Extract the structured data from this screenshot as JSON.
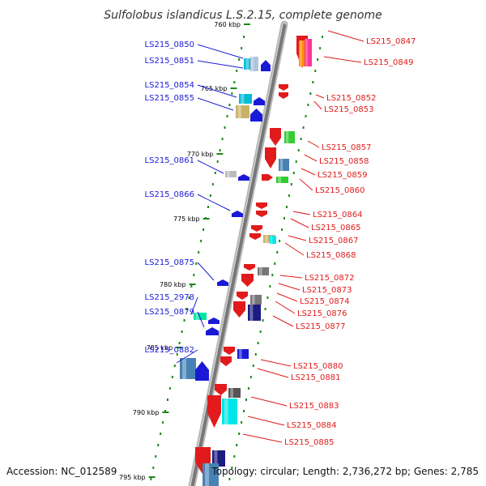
{
  "title": "Sulfolobus islandicus L.S.2.15, complete genome",
  "footer": {
    "accession": "Accession: NC_012589",
    "summary": "Topology: circular; Length: 2,736,272 bp; Genes: 2,785"
  },
  "colors": {
    "forward_strand": "#e11b1b",
    "reverse_strand": "#1a1ad6",
    "backbone": "#777777",
    "ruler": "#1a8a1a"
  },
  "ticks": [
    "760 kbp",
    "765 kbp",
    "770 kbp",
    "775 kbp",
    "780 kbp",
    "785 kbp",
    "790 kbp",
    "795 kbp"
  ],
  "left_genes": [
    "LS215_0850",
    "LS215_0851",
    "LS215_0854",
    "LS215_0855",
    "LS215_0861",
    "LS215_0866",
    "LS215_0875",
    "LS215_2978",
    "LS215_0879",
    "LS215_0882"
  ],
  "right_genes": [
    "LS215_0847",
    "LS215_0849",
    "LS215_0852",
    "LS215_0853",
    "LS215_0857",
    "LS215_0858",
    "LS215_0859",
    "LS215_0860",
    "LS215_0864",
    "LS215_0865",
    "LS215_0867",
    "LS215_0868",
    "LS215_0872",
    "LS215_0873",
    "LS215_0874",
    "LS215_0876",
    "LS215_0877",
    "LS215_0880",
    "LS215_0881",
    "LS215_0883",
    "LS215_0884",
    "LS215_0885"
  ]
}
